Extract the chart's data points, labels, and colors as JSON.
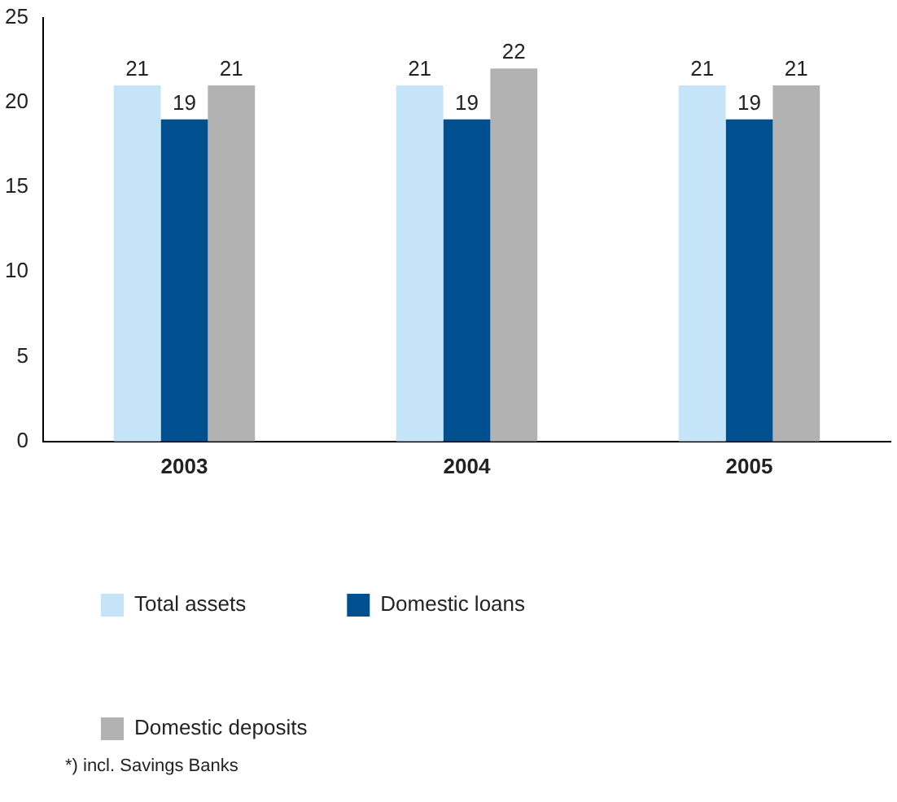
{
  "chart_data": {
    "type": "bar",
    "categories": [
      "2003",
      "2004",
      "2005"
    ],
    "series": [
      {
        "name": "Total assets",
        "color": "#c6e4f7",
        "values": [
          21,
          21,
          21
        ]
      },
      {
        "name": "Domestic loans",
        "color": "#00508f",
        "values": [
          19,
          19,
          19
        ]
      },
      {
        "name": "Domestic deposits",
        "color": "#b2b2b2",
        "values": [
          21,
          22,
          21
        ]
      }
    ],
    "ylim": [
      0,
      25
    ],
    "yticks": [
      0,
      5,
      10,
      15,
      20,
      25
    ],
    "grid": false,
    "legend": "bottom",
    "data_labels": true,
    "annotations": [
      "*) incl. Savings Banks"
    ]
  }
}
